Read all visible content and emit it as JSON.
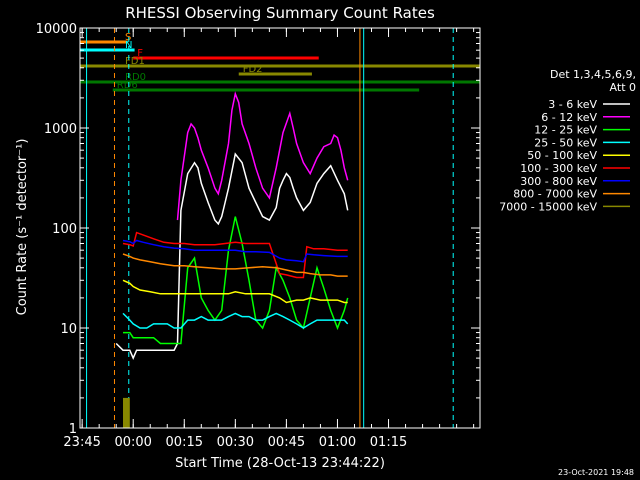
{
  "chart_data": {
    "type": "line",
    "title": "RHESSI Observing Summary Count Rates",
    "xlabel": "Start Time (28-Oct-13 23:44:22)",
    "ylabel": "Count Rate (s⁻¹ detector⁻¹)",
    "y_scale": "log",
    "ylim": [
      1,
      10000
    ],
    "xlim_min": [
      -15.63,
      101.87
    ],
    "x_unit": "minutes after 00:00 on 29-Oct-13",
    "x_ticks": [
      {
        "label": "23:45",
        "min": -15
      },
      {
        "label": "00:00",
        "min": 0
      },
      {
        "label": "00:15",
        "min": 15
      },
      {
        "label": "00:30",
        "min": 30
      },
      {
        "label": "00:45",
        "min": 45
      },
      {
        "label": "01:00",
        "min": 60
      },
      {
        "label": "01:15",
        "min": 75
      }
    ],
    "y_ticks": [
      {
        "label": "1",
        "value": 1
      },
      {
        "label": "10",
        "value": 10
      },
      {
        "label": "100",
        "value": 100
      },
      {
        "label": "1000",
        "value": 1000
      },
      {
        "label": "10000",
        "value": 10000
      }
    ],
    "grid": false,
    "legend": {
      "title_lines": [
        "Det 1,3,4,5,6,9,",
        "Att 0"
      ],
      "placement": "right"
    },
    "series": [
      {
        "name": "3 - 6 keV",
        "color": "#ffffff",
        "x": [
          -5,
          -3,
          -1,
          0,
          1,
          3,
          5,
          8,
          10,
          12,
          13,
          14,
          16,
          18,
          19,
          20,
          22,
          24,
          25,
          26,
          27,
          28,
          30,
          32,
          34,
          36,
          38,
          40,
          42,
          43,
          44,
          45,
          46,
          47,
          48,
          50,
          52,
          54,
          56,
          58,
          60,
          62,
          63
        ],
        "y": [
          7,
          6,
          6,
          5,
          6,
          6,
          6,
          6,
          6,
          6,
          7,
          150,
          350,
          450,
          400,
          280,
          180,
          120,
          110,
          130,
          180,
          250,
          550,
          450,
          250,
          180,
          130,
          120,
          160,
          250,
          300,
          350,
          320,
          250,
          200,
          150,
          180,
          280,
          350,
          420,
          300,
          220,
          150
        ]
      },
      {
        "name": "6 - 12 keV",
        "color": "#ff00ff",
        "x": [
          13,
          14,
          16,
          17,
          18,
          19,
          20,
          22,
          24,
          25,
          26,
          28,
          29,
          30,
          31,
          32,
          34,
          36,
          38,
          40,
          42,
          44,
          46,
          47,
          48,
          50,
          52,
          54,
          56,
          58,
          59,
          60,
          61,
          62,
          63
        ],
        "y": [
          120,
          300,
          900,
          1100,
          1000,
          800,
          600,
          400,
          250,
          220,
          300,
          700,
          1500,
          2200,
          1800,
          1100,
          700,
          400,
          250,
          200,
          400,
          900,
          1400,
          1000,
          700,
          450,
          350,
          500,
          650,
          700,
          850,
          800,
          600,
          400,
          300
        ]
      },
      {
        "name": "12 - 25 keV",
        "color": "#00ff00",
        "x": [
          -3,
          -1,
          0,
          2,
          4,
          6,
          8,
          10,
          12,
          14,
          16,
          18,
          20,
          22,
          24,
          26,
          28,
          30,
          32,
          34,
          36,
          38,
          40,
          42,
          44,
          46,
          48,
          50,
          52,
          54,
          56,
          58,
          60,
          62,
          63
        ],
        "y": [
          9,
          9,
          8,
          8,
          8,
          8,
          7,
          7,
          7,
          7,
          40,
          50,
          20,
          15,
          12,
          15,
          60,
          130,
          70,
          30,
          12,
          10,
          15,
          40,
          30,
          20,
          12,
          10,
          20,
          40,
          25,
          15,
          10,
          15,
          20
        ]
      },
      {
        "name": "25 - 50 keV",
        "color": "#00ffff",
        "x": [
          -3,
          -1,
          0,
          2,
          4,
          6,
          8,
          10,
          12,
          14,
          16,
          18,
          20,
          22,
          24,
          26,
          28,
          30,
          32,
          34,
          36,
          38,
          40,
          42,
          44,
          46,
          48,
          50,
          52,
          54,
          56,
          58,
          60,
          62,
          63
        ],
        "y": [
          14,
          12,
          11,
          10,
          10,
          11,
          11,
          11,
          10,
          10,
          12,
          12,
          13,
          12,
          12,
          12,
          13,
          14,
          13,
          13,
          12,
          12,
          13,
          14,
          13,
          12,
          11,
          10,
          11,
          12,
          12,
          12,
          12,
          12,
          11
        ]
      },
      {
        "name": "50 - 100 keV",
        "color": "#ffff00",
        "x": [
          -3,
          -1,
          0,
          2,
          5,
          8,
          12,
          15,
          18,
          20,
          22,
          25,
          28,
          30,
          33,
          36,
          40,
          43,
          45,
          48,
          50,
          52,
          55,
          58,
          60,
          62,
          63
        ],
        "y": [
          30,
          28,
          26,
          24,
          23,
          22,
          22,
          22,
          22,
          22,
          22,
          22,
          22,
          23,
          22,
          22,
          22,
          20,
          18,
          19,
          19,
          20,
          19,
          19,
          19,
          18,
          18
        ]
      },
      {
        "name": "100 - 300 keV",
        "color": "#ff0000",
        "x": [
          -3,
          -1,
          0,
          1,
          3,
          6,
          9,
          12,
          15,
          18,
          21,
          24,
          27,
          30,
          33,
          36,
          40,
          43,
          45,
          48,
          50,
          51,
          53,
          56,
          60,
          63
        ],
        "y": [
          70,
          68,
          66,
          90,
          85,
          78,
          72,
          70,
          70,
          68,
          68,
          68,
          70,
          72,
          70,
          70,
          70,
          35,
          34,
          32,
          32,
          65,
          62,
          62,
          60,
          60
        ]
      },
      {
        "name": "300 - 800 keV",
        "color": "#0000ff",
        "x": [
          -3,
          -1,
          0,
          1,
          3,
          6,
          9,
          12,
          15,
          18,
          21,
          24,
          27,
          30,
          33,
          36,
          40,
          43,
          45,
          48,
          50,
          51,
          53,
          56,
          60,
          63
        ],
        "y": [
          75,
          73,
          70,
          75,
          72,
          68,
          65,
          63,
          62,
          60,
          60,
          60,
          60,
          60,
          58,
          58,
          57,
          50,
          48,
          47,
          46,
          55,
          54,
          53,
          52,
          52
        ]
      },
      {
        "name": "800 - 7000 keV",
        "color": "#ff8800",
        "x": [
          -3,
          -1,
          0,
          2,
          5,
          8,
          12,
          15,
          18,
          22,
          26,
          30,
          34,
          38,
          42,
          45,
          48,
          50,
          52,
          55,
          58,
          60,
          63
        ],
        "y": [
          55,
          52,
          50,
          48,
          46,
          44,
          42,
          42,
          41,
          40,
          39,
          39,
          40,
          41,
          40,
          38,
          36,
          36,
          35,
          34,
          34,
          33,
          33
        ]
      },
      {
        "name": "7000 - 15000 keV",
        "color": "#888800",
        "x": [
          -3,
          -1
        ],
        "y": [
          2,
          2
        ]
      }
    ],
    "overlays": {
      "flags": [
        {
          "label": "S",
          "color": "#ff8800",
          "start": -15.63,
          "end": -1.6,
          "level": 0
        },
        {
          "label": "N",
          "color": "#00ffff",
          "start": -15.63,
          "end": 0.4,
          "level": 1
        },
        {
          "label": "F",
          "color": "#ff0000",
          "start": 0,
          "end": 54.5,
          "level": 2
        },
        {
          "label": "FD1",
          "color": "#888800",
          "start": -15.63,
          "end": 101.87,
          "level": 3
        },
        {
          "label": "FD2",
          "color": "#888800",
          "start": 31,
          "end": 52.5,
          "level": 4
        },
        {
          "label": "RD0",
          "color": "#007700",
          "start": -15.63,
          "end": 101.87,
          "level": 5
        },
        {
          "label": "RD6",
          "color": "#007700",
          "start": -6,
          "end": 84,
          "level": 6
        }
      ],
      "vertical_lines": [
        {
          "min": -5.5,
          "color": "#ff8800",
          "style": "dashed"
        },
        {
          "min": -1.3,
          "color": "#00ffff",
          "style": "dashed"
        },
        {
          "min": 66.6,
          "color": "#ff8800",
          "style": "solid"
        },
        {
          "min": 67.7,
          "color": "#00ffff",
          "style": "solid"
        },
        {
          "min": 94.0,
          "color": "#00ffff",
          "style": "dashed"
        },
        {
          "min": -13.7,
          "color": "#00ffff",
          "style": "solid"
        }
      ]
    }
  },
  "footer": {
    "timestamp": "23-Oct-2021 19:48"
  }
}
